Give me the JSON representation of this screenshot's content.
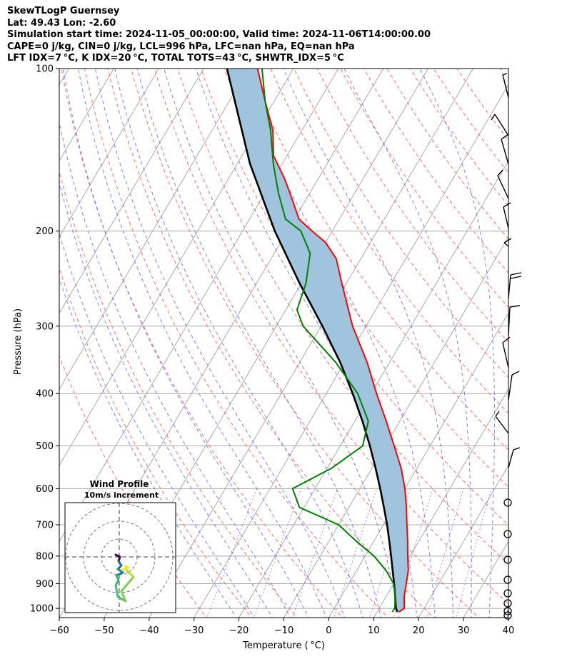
{
  "header": {
    "line1": "SkewTLogP Guernsey",
    "line2": "Lat: 49.43   Lon: -2.60",
    "line3": "Simulation start time: 2024-11-05_00:00:00, Valid time: 2024-11-06T14:00:00.00",
    "line4": "CAPE=0 j/kg, CIN=0 j/kg, LCL=996 hPa, LFC=nan hPa, EQ=nan hPa",
    "line5": "LFT IDX=7 °C, K IDX=20 °C, TOTAL TOTS=43 °C, SHWTR_IDX=5 °C"
  },
  "chart_data": [
    {
      "type": "line",
      "subtype": "skew-t log-p",
      "xlabel": "Temperature ( °C)",
      "ylabel": "Pressure (hPa)",
      "xlim": [
        -60,
        40
      ],
      "ylim": [
        1040,
        100
      ],
      "y_scale": "log",
      "grid": true,
      "x_ticks": [
        -60,
        -50,
        -40,
        -30,
        -20,
        -10,
        0,
        10,
        20,
        30,
        40
      ],
      "x_tick_labels": [
        "−60",
        "−50",
        "−40",
        "−30",
        "−20",
        "−10",
        "0",
        "10",
        "20",
        "30",
        "40"
      ],
      "y_ticks": [
        1000,
        900,
        800,
        700,
        600,
        500,
        400,
        300,
        200,
        100
      ],
      "y_tick_labels": [
        "1000",
        "900",
        "800",
        "700",
        "600",
        "500",
        "400",
        "300",
        "200",
        "100"
      ],
      "colors": {
        "temperature": "#ff0000",
        "dewpoint": "#008000",
        "parcel": "#000000",
        "cape_fill": "#a0c4de",
        "dry_adiabats": "#ff6060",
        "moist_adiabats": "#6b6bff",
        "mixing_ratio": "#a050c8",
        "isotherms": "#aaaaaa"
      },
      "series": [
        {
          "role": "temperature",
          "points": [
            [
              1015,
              14.9
            ],
            [
              1000,
              15.6
            ],
            [
              975,
              14.8
            ],
            [
              950,
              14.0
            ],
            [
              925,
              13.4
            ],
            [
              900,
              12.8
            ],
            [
              850,
              11.5
            ],
            [
              800,
              9.5
            ],
            [
              750,
              7.5
            ],
            [
              700,
              5.2
            ],
            [
              650,
              2.8
            ],
            [
              600,
              0.0
            ],
            [
              550,
              -3.5
            ],
            [
              500,
              -8.0
            ],
            [
              450,
              -13.0
            ],
            [
              400,
              -18.8
            ],
            [
              350,
              -25.0
            ],
            [
              300,
              -33.0
            ],
            [
              250,
              -41.0
            ],
            [
              225,
              -45.5
            ],
            [
              210,
              -50.0
            ],
            [
              200,
              -54.5
            ],
            [
              190,
              -59.0
            ],
            [
              175,
              -63.0
            ],
            [
              160,
              -67.5
            ],
            [
              145,
              -73.0
            ],
            [
              130,
              -76.5
            ],
            [
              115,
              -82.0
            ],
            [
              100,
              -88.0
            ]
          ]
        },
        {
          "role": "dewpoint",
          "points": [
            [
              1015,
              13.4
            ],
            [
              1000,
              13.5
            ],
            [
              950,
              12.0
            ],
            [
              900,
              10.0
            ],
            [
              850,
              6.5
            ],
            [
              800,
              2.0
            ],
            [
              750,
              -4.0
            ],
            [
              700,
              -10.0
            ],
            [
              650,
              -21.0
            ],
            [
              600,
              -25.0
            ],
            [
              550,
              -19.0
            ],
            [
              500,
              -15.0
            ],
            [
              450,
              -17.0
            ],
            [
              400,
              -23.0
            ],
            [
              350,
              -32.0
            ],
            [
              300,
              -44.0
            ],
            [
              280,
              -47.5
            ],
            [
              250,
              -49.0
            ],
            [
              220,
              -52.0
            ],
            [
              200,
              -57.0
            ],
            [
              190,
              -62.0
            ],
            [
              170,
              -67.0
            ],
            [
              150,
              -72.0
            ],
            [
              130,
              -77.0
            ],
            [
              115,
              -82.0
            ],
            [
              100,
              -87.0
            ]
          ]
        },
        {
          "role": "parcel",
          "points": [
            [
              1015,
              14.5
            ],
            [
              996,
              13.6
            ],
            [
              950,
              12.0
            ],
            [
              900,
              10.1
            ],
            [
              850,
              8.0
            ],
            [
              800,
              5.8
            ],
            [
              750,
              3.4
            ],
            [
              700,
              0.8
            ],
            [
              650,
              -2.2
            ],
            [
              600,
              -5.5
            ],
            [
              550,
              -9.2
            ],
            [
              500,
              -13.4
            ],
            [
              450,
              -18.3
            ],
            [
              400,
              -24.1
            ],
            [
              350,
              -31.0
            ],
            [
              300,
              -39.7
            ],
            [
              250,
              -50.4
            ],
            [
              200,
              -62.8
            ],
            [
              150,
              -77.2
            ],
            [
              100,
              -94.8
            ]
          ]
        }
      ]
    },
    {
      "type": "hodograph",
      "title": "Wind Profile",
      "subtitle": "10m/s increment",
      "ring_step_ms": 10
    }
  ]
}
